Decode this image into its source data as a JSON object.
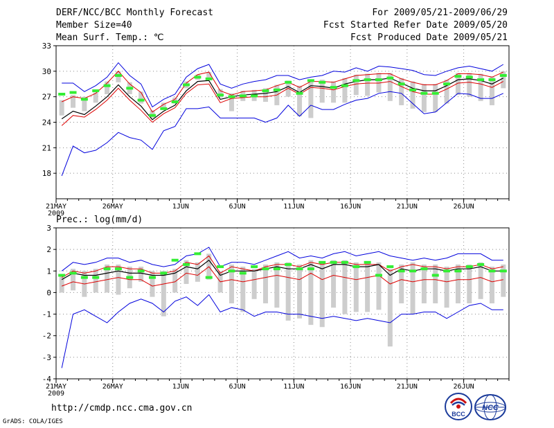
{
  "header": {
    "title": "DERF/NCC/BCC Monthly Forecast",
    "member_size": "Member Size=40",
    "variable": "Mean Surf. Temp.: ℃",
    "period": "For 2009/05/21-2009/06/29",
    "fcst_started": "Fcst Started Refer Date 2009/05/20",
    "fcst_produced": "Fcst Produced Date 2009/05/21"
  },
  "footer": {
    "url": "http://cmdp.ncc.cma.gov.cn",
    "credit": "GrADS: COLA/IGES",
    "logo_left": "BCC",
    "logo_right": "NCC"
  },
  "colors": {
    "spread": "#0000dd",
    "quartile_line": "#dd0000",
    "mean": "#000000",
    "observed": "#33ee33",
    "box": "#cdcdcd",
    "grid": "#888888"
  },
  "chart_data": [
    {
      "type": "line",
      "name": "temperature",
      "title": "Mean Surf. Temp.: ℃",
      "ylabel": "Mean Surf. Temp.: ℃",
      "ylim": [
        15,
        33
      ],
      "yticks": [
        18,
        21,
        24,
        27,
        30,
        33
      ],
      "grid": true,
      "x_tick_labels": [
        "21MAY",
        "26MAY",
        "1JUN",
        "6JUN",
        "11JUN",
        "16JUN",
        "21JUN",
        "26JUN"
      ],
      "x_tick_days": [
        1,
        6,
        12,
        17,
        22,
        27,
        32,
        37
      ],
      "year_label": "2009",
      "series": [
        {
          "name": "max",
          "values": [
            28.6,
            28.6,
            27.6,
            28.3,
            29.3,
            31.0,
            29.5,
            28.5,
            25.8,
            26.7,
            27.3,
            29.3,
            30.3,
            30.8,
            28.5,
            28.0,
            28.5,
            28.8,
            29.0,
            29.5,
            29.5,
            29.0,
            29.3,
            29.5,
            30.0,
            29.9,
            30.4,
            30.0,
            30.6,
            30.5,
            30.3,
            30.1,
            29.6,
            29.5,
            30.0,
            30.4,
            30.6,
            30.3,
            30.0,
            30.8
          ]
        },
        {
          "name": "upper",
          "values": [
            26.4,
            27.0,
            26.8,
            27.4,
            28.6,
            30.0,
            28.5,
            27.5,
            25.2,
            26.1,
            26.7,
            28.6,
            29.6,
            29.9,
            27.7,
            27.2,
            27.6,
            27.7,
            27.8,
            28.3,
            28.7,
            28.1,
            28.8,
            28.8,
            28.7,
            29.1,
            29.5,
            29.6,
            29.7,
            29.7,
            29.1,
            28.7,
            28.4,
            28.4,
            28.9,
            29.7,
            29.7,
            29.6,
            29.3,
            29.9
          ]
        },
        {
          "name": "mean",
          "values": [
            24.4,
            25.3,
            24.9,
            25.9,
            27.0,
            28.4,
            27.0,
            25.9,
            24.3,
            25.3,
            26.0,
            27.7,
            28.8,
            28.9,
            26.7,
            27.0,
            27.2,
            27.3,
            27.4,
            27.6,
            28.2,
            27.5,
            28.3,
            28.2,
            28.0,
            28.5,
            28.8,
            29.0,
            29.0,
            29.2,
            28.6,
            28.0,
            27.7,
            27.7,
            28.3,
            29.0,
            29.1,
            28.9,
            28.5,
            29.2
          ]
        },
        {
          "name": "lower",
          "values": [
            23.6,
            24.8,
            24.6,
            25.5,
            26.6,
            28.0,
            26.6,
            25.4,
            24.0,
            25.0,
            25.7,
            27.4,
            28.4,
            28.5,
            26.3,
            26.8,
            26.9,
            27.0,
            27.0,
            27.2,
            28.0,
            27.3,
            28.1,
            28.0,
            27.8,
            28.2,
            28.5,
            28.6,
            28.6,
            28.8,
            28.2,
            27.6,
            27.3,
            27.3,
            27.9,
            28.6,
            28.7,
            28.5,
            28.1,
            28.8
          ]
        },
        {
          "name": "min",
          "values": [
            17.7,
            21.2,
            20.4,
            20.7,
            21.6,
            22.8,
            22.2,
            21.9,
            20.8,
            23.0,
            23.5,
            25.6,
            25.6,
            25.8,
            24.5,
            24.5,
            24.5,
            24.5,
            24.0,
            24.5,
            26.0,
            24.7,
            26.0,
            25.5,
            25.5,
            26.1,
            26.6,
            26.8,
            27.4,
            27.6,
            27.4,
            26.2,
            25.0,
            25.2,
            26.3,
            27.4,
            27.3,
            26.8,
            26.8,
            27.4
          ]
        },
        {
          "name": "observed",
          "values": [
            27.3,
            27.5,
            26.7,
            27.7,
            28.3,
            29.5,
            28.0,
            26.6,
            24.8,
            25.6,
            26.4,
            28.4,
            29.3,
            29.1,
            27.2,
            27.0,
            27.1,
            27.1,
            27.7,
            27.8,
            28.7,
            27.4,
            28.9,
            28.7,
            28.1,
            28.3,
            28.9,
            29.0,
            29.0,
            29.2,
            28.5,
            27.8,
            27.4,
            27.4,
            28.5,
            29.4,
            29.3,
            29.0,
            29.0,
            29.5
          ]
        },
        {
          "name": "box_high",
          "values": [
            26.6,
            27.2,
            27.0,
            27.5,
            28.8,
            30.0,
            28.7,
            27.6,
            25.4,
            26.3,
            26.9,
            28.8,
            29.6,
            29.9,
            27.9,
            27.4,
            27.7,
            27.8,
            28.0,
            28.4,
            28.9,
            28.3,
            29.0,
            29.0,
            28.8,
            29.2,
            29.6,
            29.7,
            29.8,
            29.8,
            29.2,
            28.8,
            28.5,
            28.5,
            29.0,
            29.8,
            29.8,
            29.7,
            29.4,
            30.0
          ]
        },
        {
          "name": "box_low",
          "values": [
            24.8,
            25.7,
            25.3,
            26.3,
            27.3,
            28.7,
            27.3,
            26.2,
            24.5,
            25.5,
            26.2,
            28.0,
            29.0,
            29.1,
            26.9,
            25.3,
            26.5,
            26.5,
            26.4,
            26.0,
            27.0,
            24.7,
            24.5,
            26.3,
            26.3,
            26.3,
            27.2,
            27.1,
            27.5,
            26.5,
            26.0,
            25.6,
            25.2,
            25.2,
            26.2,
            27.2,
            27.0,
            26.5,
            26.0,
            28.0
          ]
        }
      ]
    },
    {
      "type": "line",
      "name": "precipitation",
      "title": "Prec.: log(mm/d)",
      "ylabel": "Prec.: log(mm/d)",
      "ylim": [
        -4,
        3
      ],
      "yticks": [
        -4,
        -3,
        -2,
        -1,
        0,
        1,
        2,
        3
      ],
      "grid": true,
      "x_tick_labels": [
        "21MAY",
        "26MAY",
        "1JUN",
        "6JUN",
        "11JUN",
        "16JUN",
        "21JUN",
        "26JUN"
      ],
      "x_tick_days": [
        1,
        6,
        12,
        17,
        22,
        27,
        32,
        37
      ],
      "year_label": "2009",
      "series": [
        {
          "name": "max",
          "values": [
            1.0,
            1.4,
            1.3,
            1.4,
            1.6,
            1.6,
            1.4,
            1.5,
            1.3,
            1.2,
            1.3,
            1.7,
            1.8,
            2.1,
            1.2,
            1.4,
            1.4,
            1.3,
            1.5,
            1.7,
            1.9,
            1.6,
            1.7,
            1.6,
            1.8,
            1.9,
            1.7,
            1.8,
            1.9,
            1.7,
            1.6,
            1.5,
            1.6,
            1.5,
            1.6,
            1.8,
            1.8,
            1.8,
            1.5,
            1.5
          ]
        },
        {
          "name": "upper",
          "values": [
            0.7,
            1.0,
            0.9,
            1.0,
            1.2,
            1.2,
            1.1,
            1.1,
            0.9,
            0.9,
            1.0,
            1.4,
            1.3,
            1.7,
            0.9,
            1.2,
            1.1,
            1.0,
            1.2,
            1.3,
            1.3,
            1.2,
            1.4,
            1.3,
            1.4,
            1.4,
            1.3,
            1.3,
            1.3,
            1.0,
            1.2,
            1.3,
            1.2,
            1.2,
            1.1,
            1.2,
            1.2,
            1.3,
            1.1,
            1.2
          ]
        },
        {
          "name": "mean",
          "values": [
            0.6,
            0.9,
            0.8,
            0.8,
            0.9,
            1.0,
            0.9,
            0.9,
            0.8,
            0.8,
            0.9,
            1.2,
            1.1,
            1.5,
            0.8,
            1.0,
            1.0,
            1.0,
            1.1,
            1.2,
            1.1,
            1.1,
            1.3,
            1.1,
            1.3,
            1.3,
            1.2,
            1.2,
            1.3,
            0.8,
            1.1,
            1.0,
            1.1,
            1.1,
            1.0,
            1.1,
            1.1,
            1.2,
            1.0,
            1.0
          ]
        },
        {
          "name": "lower",
          "values": [
            0.3,
            0.5,
            0.4,
            0.5,
            0.6,
            0.7,
            0.6,
            0.6,
            0.3,
            0.4,
            0.5,
            0.9,
            0.8,
            1.2,
            0.5,
            0.6,
            0.5,
            0.6,
            0.7,
            0.8,
            0.7,
            0.6,
            0.9,
            0.6,
            0.8,
            0.7,
            0.6,
            0.7,
            0.8,
            0.4,
            0.6,
            0.5,
            0.6,
            0.6,
            0.5,
            0.6,
            0.6,
            0.7,
            0.5,
            0.6
          ]
        },
        {
          "name": "min",
          "values": [
            -3.5,
            -1.0,
            -0.8,
            -1.1,
            -1.4,
            -0.9,
            -0.5,
            -0.3,
            -0.5,
            -0.9,
            -0.4,
            -0.2,
            -0.6,
            -0.1,
            -0.9,
            -0.7,
            -0.8,
            -1.1,
            -0.9,
            -0.9,
            -1.0,
            -1.0,
            -1.1,
            -1.2,
            -1.1,
            -1.2,
            -1.3,
            -1.2,
            -1.3,
            -1.4,
            -1.0,
            -1.0,
            -0.9,
            -0.9,
            -1.2,
            -0.9,
            -0.6,
            -0.5,
            -0.8,
            -0.8
          ]
        },
        {
          "name": "observed",
          "values": [
            0.8,
            0.9,
            0.7,
            0.7,
            1.1,
            1.1,
            0.7,
            1.0,
            0.7,
            0.9,
            1.5,
            1.3,
            1.8,
            0.7,
            1.2,
            1.0,
            0.9,
            1.2,
            1.1,
            1.1,
            1.3,
            1.1,
            1.1,
            1.4,
            1.4,
            1.4,
            1.2,
            1.4,
            0.8,
            1.2,
            1.0,
            1.0,
            1.1,
            0.8,
            1.0,
            1.0,
            1.2,
            1.3,
            1.0,
            1.0
          ]
        },
        {
          "name": "box_high",
          "values": [
            0.8,
            1.1,
            1.0,
            1.1,
            1.3,
            1.3,
            1.2,
            1.2,
            1.0,
            1.0,
            1.1,
            1.5,
            1.4,
            1.8,
            1.0,
            1.3,
            1.2,
            1.1,
            1.3,
            1.4,
            1.4,
            1.3,
            1.5,
            1.4,
            1.5,
            1.5,
            1.4,
            1.4,
            1.4,
            1.1,
            1.3,
            1.4,
            1.3,
            1.3,
            1.2,
            1.3,
            1.3,
            1.4,
            1.2,
            1.3
          ]
        },
        {
          "name": "box_low",
          "values": [
            0.0,
            0.1,
            -0.2,
            0.0,
            0.0,
            -0.1,
            0.2,
            0.5,
            -0.2,
            -1.1,
            0.0,
            0.4,
            0.5,
            0.6,
            0.0,
            -0.5,
            -0.9,
            -0.3,
            -0.5,
            -0.7,
            -1.3,
            -1.2,
            -1.5,
            -1.6,
            -0.7,
            -1.0,
            -0.9,
            -0.9,
            -0.8,
            -2.5,
            -0.5,
            -1.0,
            -0.5,
            -0.5,
            -0.7,
            -0.5,
            -0.5,
            -0.3,
            -0.5,
            -0.2
          ]
        }
      ]
    }
  ]
}
